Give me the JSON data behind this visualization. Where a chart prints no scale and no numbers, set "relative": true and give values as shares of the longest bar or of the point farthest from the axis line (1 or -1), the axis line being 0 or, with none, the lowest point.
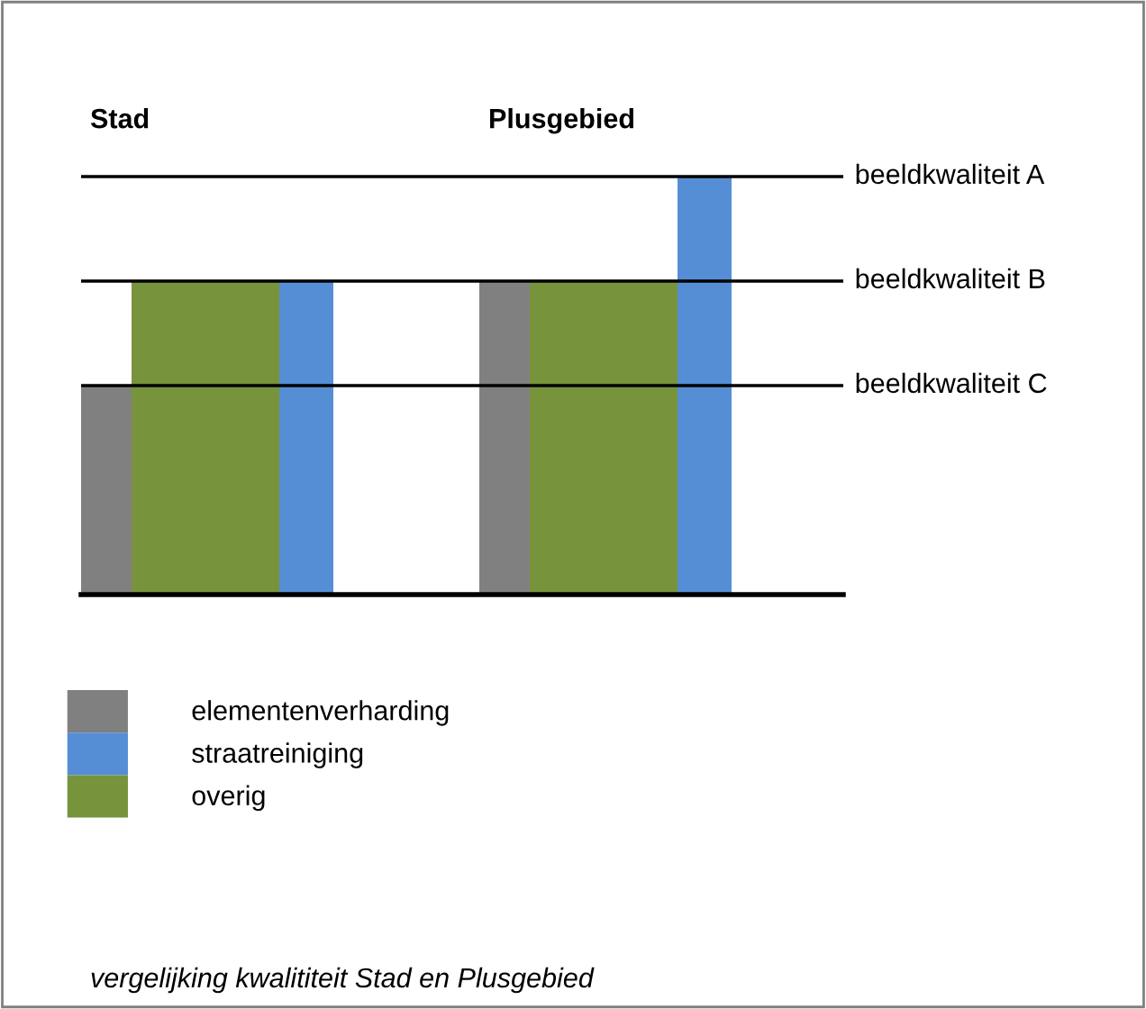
{
  "chart_data": {
    "type": "bar",
    "relative": true,
    "categories": [
      "Stad",
      "Plusgebied"
    ],
    "series": [
      {
        "name": "elementenverharding",
        "color": "#808080",
        "values": [
          0.5,
          0.75
        ]
      },
      {
        "name": "straatreiniging",
        "color": "#558ed5",
        "values": [
          0.75,
          1
        ]
      },
      {
        "name": "overig",
        "color": "#77933c",
        "values": [
          0.75,
          0.75
        ]
      }
    ],
    "ref_lines": [
      {
        "axis": "y",
        "value": 1,
        "label": "beeldkwaliteit A",
        "color": "#000000"
      },
      {
        "axis": "y",
        "value": 0.75,
        "label": "beeldkwaliteit B",
        "color": "#000000"
      },
      {
        "axis": "y",
        "value": 0.5,
        "label": "beeldkwaliteit C",
        "color": "#000000"
      }
    ],
    "legend": "bottom left",
    "annotations": [
      "vergelijking kwalititeit Stad en Plusgebied"
    ]
  }
}
